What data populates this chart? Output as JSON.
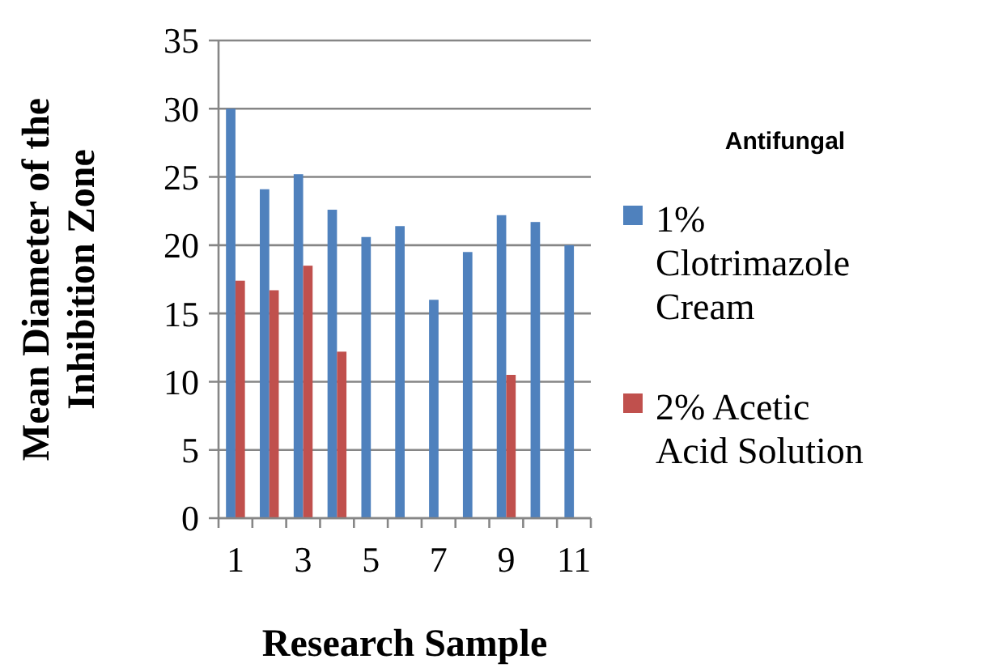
{
  "chart_data": {
    "type": "bar",
    "xlabel": "Research Sample",
    "ylabel": "Mean Diameter of the Inhibition Zone",
    "legend_title": "Antifungal",
    "categories": [
      "1",
      null,
      "3",
      null,
      "5",
      null,
      "7",
      null,
      "9",
      null,
      "11"
    ],
    "series": [
      {
        "name": "1% Clotrimazole Cream",
        "color": "#4f81bd",
        "values": [
          30.0,
          24.1,
          25.2,
          22.6,
          20.6,
          21.4,
          16.0,
          19.5,
          22.2,
          21.7,
          20.0
        ]
      },
      {
        "name": "2% Acetic Acid Solution",
        "color": "#c0504d",
        "values": [
          17.4,
          16.7,
          18.5,
          12.2,
          null,
          null,
          null,
          null,
          10.5,
          null,
          null
        ]
      }
    ],
    "ylim": [
      0,
      35
    ],
    "yticks": [
      0,
      5,
      10,
      15,
      20,
      25,
      30,
      35
    ],
    "grid": "y",
    "legend": "right"
  }
}
